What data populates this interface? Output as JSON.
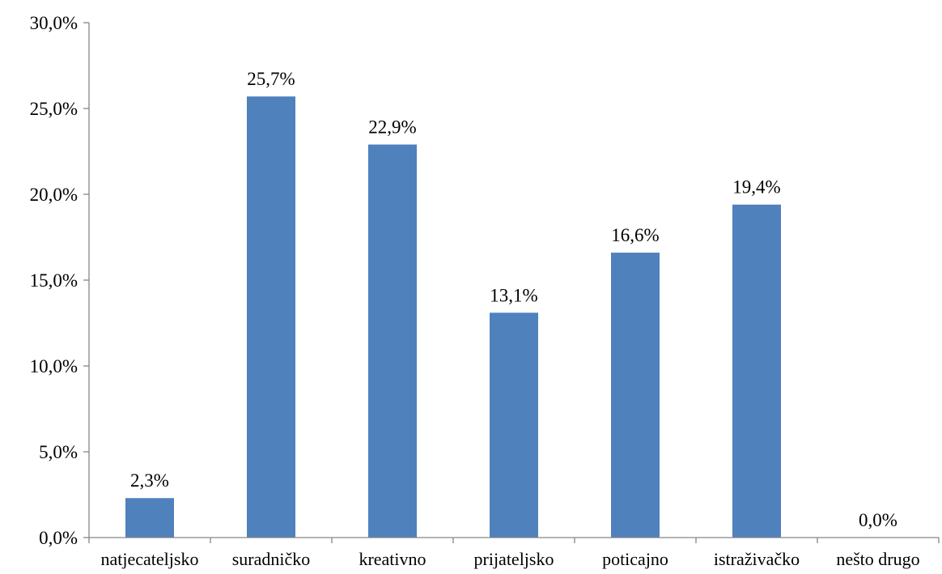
{
  "chart_data": {
    "type": "bar",
    "categories": [
      "natjecateljsko",
      "suradničko",
      "kreativno",
      "prijateljsko",
      "poticajno",
      "istraživačko",
      "nešto drugo"
    ],
    "values": [
      2.3,
      25.7,
      22.9,
      13.1,
      16.6,
      19.4,
      0.0
    ],
    "data_labels": [
      "2,3%",
      "25,7%",
      "22,9%",
      "13,1%",
      "16,6%",
      "19,4%",
      "0,0%"
    ],
    "y_ticks": [
      0,
      5,
      10,
      15,
      20,
      25,
      30
    ],
    "y_tick_labels": [
      "0,0%",
      "5,0%",
      "10,0%",
      "15,0%",
      "20,0%",
      "25,0%",
      "30,0%"
    ],
    "ylim": [
      0,
      30
    ],
    "title": "",
    "xlabel": "",
    "ylabel": "",
    "grid": false,
    "legend": "none",
    "bar_color": "#4F81BD",
    "axis_color": "#868686"
  }
}
